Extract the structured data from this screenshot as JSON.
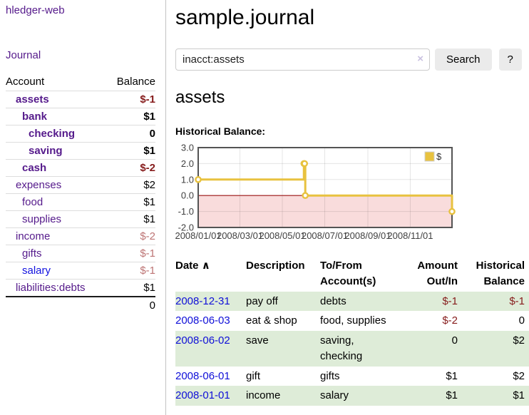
{
  "app": {
    "title": "hledger-web",
    "journal_link": "Journal"
  },
  "sidebar": {
    "header": {
      "account": "Account",
      "balance": "Balance"
    },
    "accounts": [
      {
        "name": "assets",
        "balance": "$-1",
        "indent": 1,
        "bold": true,
        "neg": "strong"
      },
      {
        "name": "bank",
        "balance": "$1",
        "indent": 2,
        "bold": true,
        "neg": null
      },
      {
        "name": "checking",
        "balance": "0",
        "indent": 3,
        "bold": true,
        "neg": null
      },
      {
        "name": "saving",
        "balance": "$1",
        "indent": 3,
        "bold": true,
        "neg": null
      },
      {
        "name": "cash",
        "balance": "$-2",
        "indent": 2,
        "bold": true,
        "neg": "strong"
      },
      {
        "name": "expenses",
        "balance": "$2",
        "indent": 1,
        "bold": false,
        "neg": null
      },
      {
        "name": "food",
        "balance": "$1",
        "indent": 2,
        "bold": false,
        "neg": null
      },
      {
        "name": "supplies",
        "balance": "$1",
        "indent": 2,
        "bold": false,
        "neg": null
      },
      {
        "name": "income",
        "balance": "$-2",
        "indent": 1,
        "bold": false,
        "neg": "dim"
      },
      {
        "name": "gifts",
        "balance": "$-1",
        "indent": 2,
        "bold": false,
        "neg": "dim"
      },
      {
        "name": "salary",
        "balance": "$-1",
        "indent": 2,
        "bold": false,
        "neg": "dim",
        "blue_link": true
      },
      {
        "name": "liabilities:debts",
        "balance": "$1",
        "indent": 1,
        "bold": false,
        "neg": null
      }
    ],
    "total": "0"
  },
  "main": {
    "title": "sample.journal",
    "search": {
      "value": "inacct:assets",
      "clear_icon": "×",
      "button": "Search",
      "help_button": "?"
    },
    "account_heading": "assets",
    "chart_label": "Historical Balance:"
  },
  "chart_data": {
    "type": "line",
    "title": "Historical Balance:",
    "step": true,
    "series": [
      {
        "name": "$",
        "points": [
          [
            "2008-01-01",
            1
          ],
          [
            "2008-06-01",
            2
          ],
          [
            "2008-06-02",
            2
          ],
          [
            "2008-06-03",
            0
          ],
          [
            "2008-12-31",
            -1
          ]
        ]
      }
    ],
    "xlim": [
      "2008-01-01",
      "2008-12-31"
    ],
    "ylim": [
      -2,
      3
    ],
    "yticks": [
      "3.0",
      "2.0",
      "1.0",
      "0.0",
      "-1.0",
      "-2.0"
    ],
    "xticks": [
      {
        "date": "2008-01-01",
        "label": "2008/01/01"
      },
      {
        "date": "2008-03-01",
        "label": "2008/03/01"
      },
      {
        "date": "2008-05-01",
        "label": "2008/05/01"
      },
      {
        "date": "2008-07-01",
        "label": "2008/07/01"
      },
      {
        "date": "2008-09-01",
        "label": "2008/09/01"
      },
      {
        "date": "2008-11-01",
        "label": "2008/11/01"
      }
    ],
    "legend": {
      "label": "$",
      "position": "top-right"
    },
    "grid": true,
    "colors": {
      "line": "#e8c23f",
      "marker_fill": "#ffffff",
      "negative_fill": "#f9dcdc",
      "zero_line": "#9e1616",
      "border": "#545454",
      "grid": "rgba(0,0,0,0.10)",
      "tick_text": "#3f3f3f"
    }
  },
  "register": {
    "columns": [
      "Date",
      "Description",
      "To/From Account(s)",
      "Amount Out/In",
      "Historical Balance"
    ],
    "sort_indicator": "∧",
    "rows": [
      {
        "date": "2008-12-31",
        "description": "pay off",
        "accounts": "debts",
        "amount": "$-1",
        "balance": "$-1"
      },
      {
        "date": "2008-06-03",
        "description": "eat & shop",
        "accounts": "food, supplies",
        "amount": "$-2",
        "balance": "0"
      },
      {
        "date": "2008-06-02",
        "description": "save",
        "accounts": "saving, checking",
        "amount": "0",
        "balance": "$2"
      },
      {
        "date": "2008-06-01",
        "description": "gift",
        "accounts": "gifts",
        "amount": "$1",
        "balance": "$2"
      },
      {
        "date": "2008-01-01",
        "description": "income",
        "accounts": "salary",
        "amount": "$1",
        "balance": "$1"
      }
    ]
  }
}
